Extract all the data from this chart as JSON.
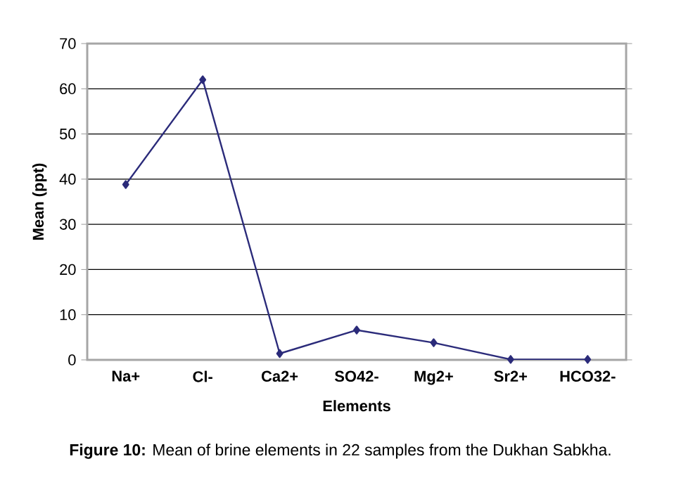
{
  "chart_data": {
    "type": "line",
    "xlabel": "Elements",
    "ylabel": "Mean (ppt)",
    "annotations": [
      "**Figure 10:** Mean of brine elements in 22 samples from the Dukhan Sabkha."
    ],
    "categories": [
      "Na+",
      "Cl-",
      "Ca2+",
      "SO42-",
      "Mg2+",
      "Sr2+",
      "HCO32-"
    ],
    "series": [
      {
        "color": "#2b2b7a",
        "values": [
          38.8,
          62,
          1.4,
          6.6,
          3.8,
          0.1,
          0.1
        ]
      }
    ],
    "ylim": [
      0,
      70
    ],
    "yticks": [
      0,
      10,
      20,
      30,
      40,
      50,
      60,
      70
    ],
    "grid": "y",
    "marker": "diamond",
    "line_style": "solid"
  }
}
